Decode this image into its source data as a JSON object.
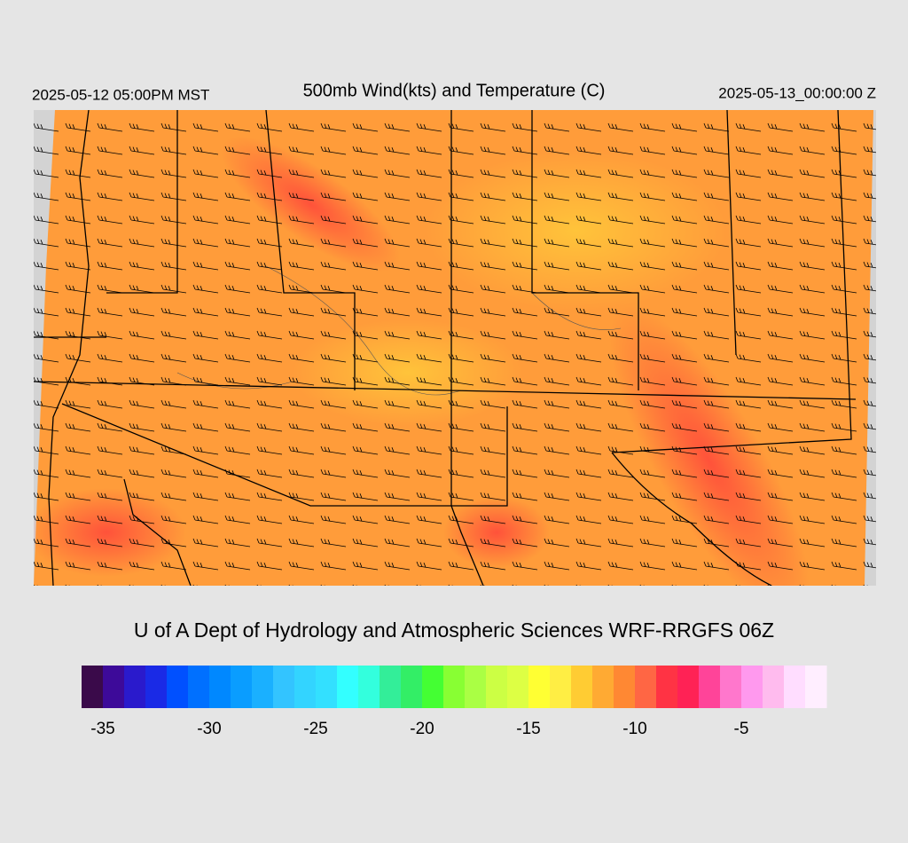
{
  "header": {
    "valid_local": "2025-05-12 05:00PM MST",
    "title": "500mb Wind(kts) and Temperature (C)",
    "valid_utc": "2025-05-13_00:00:00 Z"
  },
  "footer": "U of A Dept of Hydrology and Atmospheric Sciences WRF-RRGFS 06Z",
  "colorbar": {
    "bins": [
      -36,
      -35,
      -34,
      -33,
      -32,
      -31,
      -30,
      -29,
      -28,
      -27,
      -26,
      -25,
      -24,
      -23,
      -22,
      -21,
      -20,
      -19,
      -18,
      -17,
      -16,
      -15,
      -14,
      -13,
      -12,
      -11,
      -10,
      -9,
      -8,
      -7,
      -6,
      -5,
      -4,
      -3,
      -2,
      -1
    ],
    "colors": [
      "#3a0a4a",
      "#3d0a99",
      "#2a1acc",
      "#1a2ae6",
      "#0050ff",
      "#0070ff",
      "#0088ff",
      "#0a9dff",
      "#1ab0ff",
      "#33c4ff",
      "#33d4ff",
      "#33e0ff",
      "#33ffff",
      "#33ffdd",
      "#33ee99",
      "#33ee66",
      "#44ff33",
      "#88ff33",
      "#aaff44",
      "#ccff44",
      "#ddff44",
      "#ffff33",
      "#ffee44",
      "#ffcc33",
      "#ffaa33",
      "#ff8833",
      "#ff6644",
      "#ff3344",
      "#ff2255",
      "#ff4499",
      "#ff77cc",
      "#ff99ee",
      "#ffbbee",
      "#ffddff",
      "#ffeeff"
    ],
    "ticks": [
      -35,
      -30,
      -25,
      -20,
      -15,
      -10,
      -5
    ]
  }
}
